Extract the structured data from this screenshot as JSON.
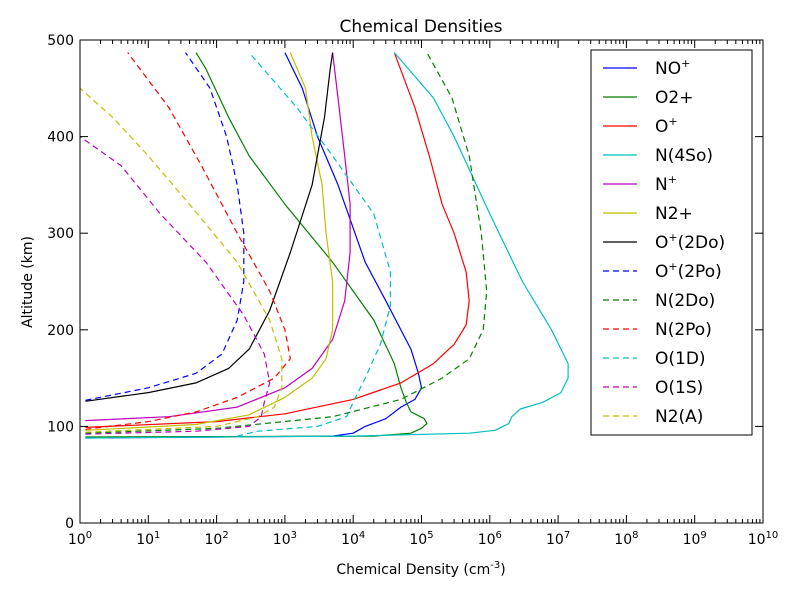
{
  "chart_data": {
    "type": "line",
    "title": "Chemical Densities",
    "xlabel": "Chemical Density (cm",
    "xlabel_sup": "-3",
    "xlabel_close": ")",
    "ylabel": "Altitude (km)",
    "x_scale": "log",
    "xlim": [
      1,
      10000000000
    ],
    "ylim": [
      0,
      500
    ],
    "x_ticks": [
      {
        "value": 1,
        "base": "10",
        "exp": "0"
      },
      {
        "value": 10,
        "base": "10",
        "exp": "1"
      },
      {
        "value": 100,
        "base": "10",
        "exp": "2"
      },
      {
        "value": 1000,
        "base": "10",
        "exp": "3"
      },
      {
        "value": 10000,
        "base": "10",
        "exp": "4"
      },
      {
        "value": 100000,
        "base": "10",
        "exp": "5"
      },
      {
        "value": 1000000,
        "base": "10",
        "exp": "6"
      },
      {
        "value": 10000000,
        "base": "10",
        "exp": "7"
      },
      {
        "value": 100000000,
        "base": "10",
        "exp": "8"
      },
      {
        "value": 1000000000,
        "base": "10",
        "exp": "9"
      },
      {
        "value": 10000000000,
        "base": "10",
        "exp": "10"
      }
    ],
    "y_ticks": [
      0,
      100,
      200,
      300,
      400,
      500
    ],
    "grid": false,
    "legend_position": "top-right",
    "series": [
      {
        "name": "NO",
        "sup": "+",
        "color": "#0000ff",
        "dash": "solid",
        "points": [
          [
            1.2,
            88
          ],
          [
            100,
            89
          ],
          [
            5000,
            90
          ],
          [
            10000,
            93
          ],
          [
            15000,
            100
          ],
          [
            30000,
            108
          ],
          [
            50000,
            120
          ],
          [
            80000,
            128
          ],
          [
            100000,
            140
          ],
          [
            90000,
            155
          ],
          [
            70000,
            180
          ],
          [
            30000,
            230
          ],
          [
            15000,
            270
          ],
          [
            6000,
            350
          ],
          [
            3000,
            400
          ],
          [
            1800,
            450
          ],
          [
            1000,
            487
          ]
        ]
      },
      {
        "name": "O2+",
        "sup": "",
        "color": "#008000",
        "dash": "solid",
        "points": [
          [
            1.2,
            89
          ],
          [
            20000,
            90
          ],
          [
            70000,
            93
          ],
          [
            100000,
            98
          ],
          [
            120000,
            103
          ],
          [
            110000,
            108
          ],
          [
            70000,
            115
          ],
          [
            60000,
            125
          ],
          [
            50000,
            140
          ],
          [
            40000,
            165
          ],
          [
            20000,
            210
          ],
          [
            5000,
            270
          ],
          [
            1000,
            330
          ],
          [
            300,
            380
          ],
          [
            150,
            420
          ],
          [
            70,
            470
          ],
          [
            50,
            487
          ]
        ]
      },
      {
        "name": "O",
        "sup": "+",
        "color": "#ff0000",
        "dash": "solid",
        "points": [
          [
            1.2,
            99
          ],
          [
            100,
            105
          ],
          [
            1000,
            113
          ],
          [
            10000,
            128
          ],
          [
            50000,
            145
          ],
          [
            150000,
            165
          ],
          [
            300000,
            185
          ],
          [
            450000,
            205
          ],
          [
            500000,
            230
          ],
          [
            450000,
            260
          ],
          [
            300000,
            300
          ],
          [
            200000,
            330
          ],
          [
            130000,
            380
          ],
          [
            80000,
            430
          ],
          [
            40000,
            487
          ]
        ]
      },
      {
        "name": "N(4So)",
        "sup": "",
        "color": "#00bfbf",
        "dash": "solid",
        "points": [
          [
            1.2,
            88
          ],
          [
            100,
            89
          ],
          [
            10000,
            90
          ],
          [
            500000,
            93
          ],
          [
            1200000,
            96
          ],
          [
            1900000,
            103
          ],
          [
            2100000,
            110
          ],
          [
            2800000,
            118
          ],
          [
            6000000,
            125
          ],
          [
            11000000,
            135
          ],
          [
            14000000,
            150
          ],
          [
            14000000,
            165
          ],
          [
            8000000,
            200
          ],
          [
            3000000,
            250
          ],
          [
            1000000,
            320
          ],
          [
            300000,
            400
          ],
          [
            150000,
            440
          ],
          [
            40000,
            487
          ]
        ]
      },
      {
        "name": "N",
        "sup": "+",
        "color": "#bf00bf",
        "dash": "solid",
        "points": [
          [
            1.2,
            106
          ],
          [
            20,
            110
          ],
          [
            200,
            120
          ],
          [
            1000,
            140
          ],
          [
            2500,
            160
          ],
          [
            5000,
            190
          ],
          [
            7500,
            230
          ],
          [
            9000,
            280
          ],
          [
            9000,
            330
          ],
          [
            7500,
            380
          ],
          [
            6000,
            440
          ],
          [
            5000,
            487
          ]
        ]
      },
      {
        "name": "N2+",
        "sup": "",
        "color": "#bfbf00",
        "dash": "solid",
        "points": [
          [
            1.2,
            96
          ],
          [
            50,
            102
          ],
          [
            300,
            112
          ],
          [
            1000,
            130
          ],
          [
            2500,
            150
          ],
          [
            4000,
            170
          ],
          [
            5000,
            200
          ],
          [
            5000,
            250
          ],
          [
            4000,
            300
          ],
          [
            3500,
            350
          ],
          [
            2500,
            400
          ],
          [
            2000,
            450
          ],
          [
            1200,
            487
          ]
        ]
      },
      {
        "name": "O",
        "sup": "+",
        "suffix": "(2Do)",
        "color": "#000000",
        "dash": "solid",
        "points": [
          [
            1.2,
            126
          ],
          [
            10,
            135
          ],
          [
            50,
            145
          ],
          [
            150,
            160
          ],
          [
            300,
            180
          ],
          [
            600,
            220
          ],
          [
            1200,
            280
          ],
          [
            2500,
            350
          ],
          [
            3800,
            420
          ],
          [
            4600,
            470
          ],
          [
            5000,
            487
          ]
        ]
      },
      {
        "name": "O",
        "sup": "+",
        "suffix": "(2Po)",
        "color": "#0000ff",
        "dash": "dashed",
        "points": [
          [
            1.2,
            127
          ],
          [
            10,
            140
          ],
          [
            50,
            155
          ],
          [
            120,
            175
          ],
          [
            200,
            210
          ],
          [
            250,
            250
          ],
          [
            250,
            300
          ],
          [
            200,
            350
          ],
          [
            140,
            400
          ],
          [
            80,
            450
          ],
          [
            35,
            487
          ]
        ]
      },
      {
        "name": "N(2Do)",
        "sup": "",
        "color": "#008000",
        "dash": "dashed",
        "points": [
          [
            1.2,
            93
          ],
          [
            100,
            98
          ],
          [
            5000,
            110
          ],
          [
            50000,
            128
          ],
          [
            200000,
            150
          ],
          [
            500000,
            170
          ],
          [
            800000,
            200
          ],
          [
            900000,
            240
          ],
          [
            750000,
            300
          ],
          [
            500000,
            380
          ],
          [
            280000,
            440
          ],
          [
            120000,
            487
          ]
        ]
      },
      {
        "name": "N(2Po)",
        "sup": "",
        "color": "#ff0000",
        "dash": "dashed",
        "points": [
          [
            1.2,
            97
          ],
          [
            10,
            105
          ],
          [
            50,
            115
          ],
          [
            200,
            130
          ],
          [
            700,
            150
          ],
          [
            1200,
            170
          ],
          [
            1000,
            200
          ],
          [
            600,
            240
          ],
          [
            200,
            300
          ],
          [
            60,
            370
          ],
          [
            20,
            430
          ],
          [
            5,
            487
          ]
        ]
      },
      {
        "name": "O(1D)",
        "sup": "",
        "color": "#00bfbf",
        "dash": "dashed",
        "points": [
          [
            200,
            90
          ],
          [
            400,
            95
          ],
          [
            3000,
            100
          ],
          [
            8000,
            110
          ],
          [
            10000,
            125
          ],
          [
            15000,
            150
          ],
          [
            25000,
            185
          ],
          [
            35000,
            225
          ],
          [
            35000,
            260
          ],
          [
            20000,
            320
          ],
          [
            5000,
            380
          ],
          [
            1500,
            430
          ],
          [
            300,
            487
          ]
        ]
      },
      {
        "name": "O(1S)",
        "sup": "",
        "color": "#bf00bf",
        "dash": "dashed",
        "points": [
          [
            1.2,
            92
          ],
          [
            50,
            95
          ],
          [
            300,
            100
          ],
          [
            450,
            110
          ],
          [
            500,
            125
          ],
          [
            600,
            145
          ],
          [
            500,
            175
          ],
          [
            250,
            215
          ],
          [
            70,
            270
          ],
          [
            15,
            320
          ],
          [
            4,
            370
          ],
          [
            1,
            400
          ]
        ]
      },
      {
        "name": "N2(A)",
        "sup": "",
        "color": "#bfbf00",
        "dash": "dashed",
        "points": [
          [
            1.2,
            94
          ],
          [
            100,
            100
          ],
          [
            400,
            110
          ],
          [
            700,
            120
          ],
          [
            900,
            140
          ],
          [
            900,
            170
          ],
          [
            600,
            210
          ],
          [
            200,
            270
          ],
          [
            40,
            330
          ],
          [
            10,
            380
          ],
          [
            3,
            420
          ],
          [
            1,
            450
          ]
        ]
      }
    ]
  }
}
